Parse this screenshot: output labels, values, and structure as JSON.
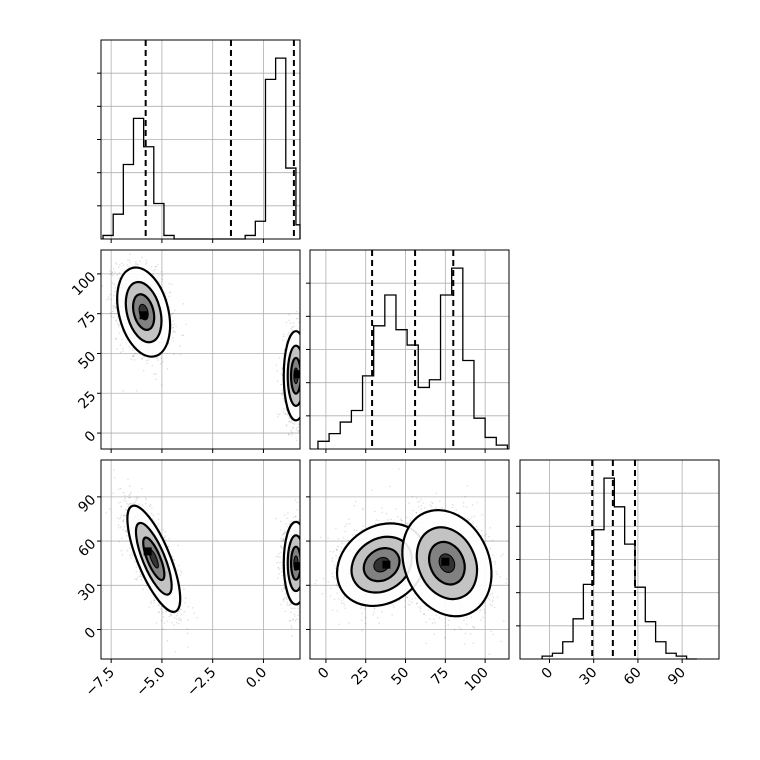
{
  "chart_data": {
    "type": "corner",
    "title": "",
    "parameters": [
      "",
      "",
      ""
    ],
    "grid": true,
    "histograms": [
      {
        "param_index": 0,
        "range": [
          -8.0,
          1.8
        ],
        "ticks": [
          -7.5,
          -5.0,
          -2.5,
          0.0
        ],
        "tick_labels": [
          "−7.5",
          "−5.0",
          "−2.5",
          "0.0"
        ],
        "quantiles": [
          -5.8,
          -1.6,
          1.5
        ],
        "bin_edges": [
          -7.9,
          -7.4,
          -6.9,
          -6.4,
          -5.9,
          -5.4,
          -4.9,
          -4.4,
          -3.9,
          -0.9,
          -0.4,
          0.1,
          0.6,
          1.1,
          1.6,
          2.0
        ],
        "counts": [
          1,
          7,
          21,
          34,
          26,
          10,
          1,
          0,
          0,
          1,
          5,
          45,
          51,
          20,
          4
        ]
      },
      {
        "param_index": 1,
        "range": [
          -10,
          115
        ],
        "ticks": [
          0,
          25,
          50,
          75,
          100
        ],
        "tick_labels": [
          "0",
          "25",
          "50",
          "75",
          "100"
        ],
        "quantiles": [
          29,
          56,
          80
        ],
        "bin_edges": [
          -5,
          2,
          9,
          16,
          23,
          30,
          37,
          44,
          51,
          58,
          65,
          72,
          79,
          86,
          93,
          100,
          107,
          114
        ],
        "counts": [
          2,
          4,
          7,
          10,
          19,
          32,
          40,
          31,
          27,
          16,
          18,
          40,
          47,
          23,
          8,
          3,
          1
        ]
      },
      {
        "param_index": 2,
        "range": [
          -20,
          115
        ],
        "ticks": [
          0,
          30,
          60,
          90
        ],
        "tick_labels": [
          "0",
          "30",
          "60",
          "90"
        ],
        "quantiles": [
          29,
          43,
          58
        ],
        "bin_edges": [
          -5,
          2,
          9,
          16,
          23,
          30,
          37,
          44,
          51,
          58,
          65,
          72,
          79,
          86,
          93,
          100
        ],
        "counts": [
          1,
          2,
          6,
          14,
          26,
          45,
          63,
          53,
          40,
          25,
          13,
          6,
          2,
          1,
          0
        ]
      }
    ],
    "scatter_panels": [
      {
        "x_param": 0,
        "y_param": 1,
        "clusters": [
          {
            "mean": [
              -5.9,
              76
            ],
            "sd": [
              0.65,
              14
            ],
            "rho": -0.3,
            "n": 1400
          },
          {
            "mean": [
              1.6,
              36
            ],
            "sd": [
              0.3,
              14
            ],
            "rho": 0.0,
            "n": 1400
          }
        ],
        "density_peaks": [
          {
            "x": -5.9,
            "y": 74
          },
          {
            "x": 1.7,
            "y": 37
          }
        ]
      },
      {
        "x_param": 0,
        "y_param": 2,
        "clusters": [
          {
            "mean": [
              -5.4,
              48
            ],
            "sd": [
              0.65,
              18
            ],
            "rho": -0.75,
            "n": 1400
          },
          {
            "mean": [
              1.6,
              45
            ],
            "sd": [
              0.3,
              14
            ],
            "rho": 0.0,
            "n": 1400
          }
        ],
        "density_peaks": [
          {
            "x": -5.7,
            "y": 53
          },
          {
            "x": 1.7,
            "y": 43
          }
        ]
      },
      {
        "x_param": 1,
        "y_param": 2,
        "clusters": [
          {
            "mean": [
              35,
              44
            ],
            "sd": [
              14,
              14
            ],
            "rho": 0.2,
            "n": 1400
          },
          {
            "mean": [
              76,
              45
            ],
            "sd": [
              14,
              18
            ],
            "rho": -0.2,
            "n": 1400
          }
        ],
        "density_peaks": [
          {
            "x": 38,
            "y": 44
          },
          {
            "x": 75,
            "y": 46
          }
        ]
      }
    ]
  }
}
